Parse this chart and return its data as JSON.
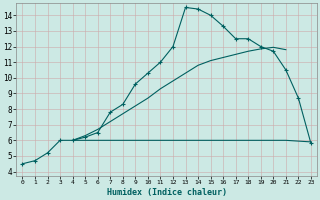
{
  "xlabel": "Humidex (Indice chaleur)",
  "ylabel": "",
  "background_color": "#cce9e4",
  "grid_color": "#b0d8d0",
  "line_color": "#006060",
  "xlim": [
    -0.5,
    23.5
  ],
  "ylim": [
    3.7,
    14.8
  ],
  "xticks": [
    0,
    1,
    2,
    3,
    4,
    5,
    6,
    7,
    8,
    9,
    10,
    11,
    12,
    13,
    14,
    15,
    16,
    17,
    18,
    19,
    20,
    21,
    22,
    23
  ],
  "yticks": [
    4,
    5,
    6,
    7,
    8,
    9,
    10,
    11,
    12,
    13,
    14
  ],
  "line1_x": [
    0,
    1,
    2,
    3,
    4,
    5,
    6,
    7,
    8,
    9,
    10,
    11,
    12,
    13,
    14,
    15,
    16,
    17,
    18,
    19,
    20,
    21,
    22,
    23
  ],
  "line1_y": [
    4.5,
    4.7,
    5.2,
    6.0,
    6.0,
    6.2,
    6.5,
    7.8,
    8.3,
    9.6,
    10.3,
    11.0,
    12.0,
    14.5,
    14.4,
    14.0,
    13.3,
    12.5,
    12.5,
    12.0,
    11.7,
    10.5,
    8.7,
    5.8
  ],
  "line2_x": [
    4,
    5,
    6,
    7,
    8,
    9,
    10,
    11,
    12,
    13,
    14,
    15,
    16,
    17,
    18,
    19,
    20,
    21
  ],
  "line2_y": [
    6.0,
    6.3,
    6.7,
    7.2,
    7.7,
    8.2,
    8.7,
    9.3,
    9.8,
    10.3,
    10.8,
    11.1,
    11.3,
    11.5,
    11.7,
    11.85,
    11.95,
    11.8
  ],
  "line3_x": [
    4,
    5,
    6,
    7,
    8,
    9,
    10,
    11,
    12,
    13,
    14,
    15,
    16,
    17,
    18,
    19,
    20,
    21,
    23
  ],
  "line3_y": [
    6.0,
    6.0,
    6.0,
    6.0,
    6.0,
    6.0,
    6.0,
    6.0,
    6.0,
    6.0,
    6.0,
    6.0,
    6.0,
    6.0,
    6.0,
    6.0,
    6.0,
    6.0,
    5.9
  ]
}
